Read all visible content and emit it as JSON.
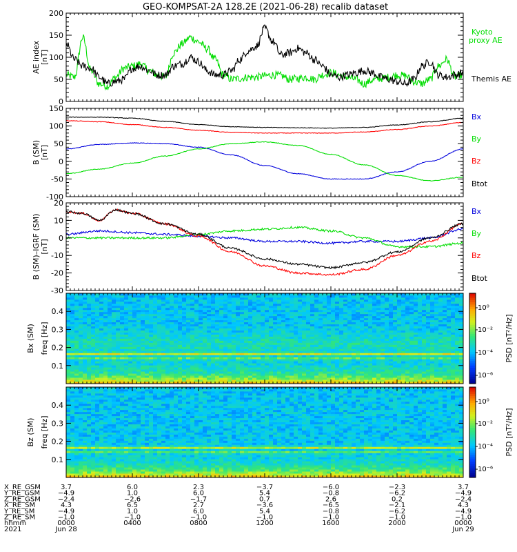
{
  "title": "GEO-KOMPSAT-2A 128.2E (2021-06-28) recalib dataset",
  "colors": {
    "black": "#000000",
    "red": "#ff0000",
    "green": "#00dd00",
    "blue": "#0000dd"
  },
  "chart_data": [
    {
      "type": "line",
      "ylabel": "AE index",
      "yunit": "[nT]",
      "ylim": [
        0,
        200
      ],
      "yticks": [
        0,
        50,
        100,
        150,
        200
      ],
      "legend_placement": "right",
      "series": [
        {
          "name": "Kyoto proxy AE",
          "color": "#00dd00",
          "legend_lines": [
            "Kyoto",
            "proxy AE"
          ],
          "x": [
            0,
            0.5,
            1,
            1.5,
            2,
            2.5,
            3,
            3.5,
            4,
            4.5,
            5,
            5.5,
            6,
            6.5,
            7,
            7.5,
            8,
            8.5,
            9,
            9.5,
            10,
            10.5,
            11,
            11.5,
            12,
            12.5,
            13,
            13.5,
            14,
            14.5,
            15,
            15.5,
            16,
            16.5,
            17,
            17.5,
            18,
            18.5,
            19,
            19.5,
            20,
            20.5,
            21,
            21.5,
            22,
            22.5,
            23,
            23.5,
            24
          ],
          "y": [
            60,
            55,
            145,
            70,
            40,
            35,
            55,
            75,
            80,
            85,
            70,
            60,
            55,
            110,
            130,
            145,
            135,
            120,
            95,
            60,
            50,
            52,
            55,
            55,
            58,
            60,
            58,
            50,
            52,
            55,
            50,
            60,
            65,
            60,
            55,
            50,
            40,
            48,
            52,
            55,
            60,
            58,
            45,
            40,
            50,
            80,
            95,
            55,
            60
          ]
        },
        {
          "name": "Themis AE",
          "color": "#000000",
          "legend_lines": [
            "Themis AE"
          ],
          "x": [
            0,
            0.5,
            1,
            1.5,
            2,
            2.5,
            3,
            3.5,
            4,
            4.5,
            5,
            5.5,
            6,
            6.5,
            7,
            7.5,
            8,
            8.5,
            9,
            9.5,
            10,
            10.5,
            11,
            11.5,
            12,
            12.5,
            13,
            13.5,
            14,
            14.5,
            15,
            15.5,
            16,
            16.5,
            17,
            17.5,
            18,
            18.5,
            19,
            19.5,
            20,
            20.5,
            21,
            21.5,
            22,
            22.5,
            23,
            23.5,
            24
          ],
          "y": [
            130,
            95,
            80,
            75,
            55,
            40,
            45,
            50,
            75,
            80,
            70,
            60,
            60,
            80,
            85,
            100,
            90,
            70,
            60,
            60,
            70,
            95,
            115,
            125,
            165,
            135,
            105,
            110,
            120,
            110,
            95,
            80,
            60,
            55,
            60,
            65,
            70,
            65,
            55,
            50,
            45,
            40,
            50,
            80,
            90,
            60,
            55,
            60,
            65
          ]
        }
      ]
    },
    {
      "type": "line",
      "ylabel": "B (SM)",
      "yunit": "[nT]",
      "ylim": [
        -100,
        150
      ],
      "yticks": [
        -100,
        -50,
        0,
        50,
        100,
        150
      ],
      "legend_placement": "right",
      "series": [
        {
          "name": "Bx",
          "color": "#0000dd",
          "x": [
            0,
            2,
            4,
            6,
            8,
            10,
            12,
            14,
            16,
            18,
            20,
            22,
            24
          ],
          "y": [
            35,
            48,
            52,
            50,
            40,
            18,
            -12,
            -35,
            -50,
            -50,
            -30,
            0,
            35
          ]
        },
        {
          "name": "By",
          "color": "#00dd00",
          "x": [
            0,
            2,
            4,
            6,
            8,
            10,
            12,
            14,
            16,
            18,
            20,
            22,
            24
          ],
          "y": [
            -35,
            -22,
            -5,
            15,
            35,
            50,
            55,
            45,
            20,
            -10,
            -40,
            -55,
            -45
          ]
        },
        {
          "name": "Bz",
          "color": "#ff0000",
          "x": [
            0,
            2,
            4,
            6,
            8,
            10,
            12,
            14,
            16,
            18,
            20,
            22,
            24
          ],
          "y": [
            115,
            112,
            104,
            96,
            88,
            82,
            80,
            80,
            80,
            83,
            90,
            100,
            110
          ]
        },
        {
          "name": "Btot",
          "color": "#000000",
          "x": [
            0,
            2,
            4,
            6,
            8,
            10,
            12,
            14,
            16,
            18,
            20,
            22,
            24
          ],
          "y": [
            125,
            125,
            122,
            113,
            104,
            98,
            96,
            95,
            94,
            96,
            103,
            112,
            122
          ]
        }
      ]
    },
    {
      "type": "line",
      "ylabel": "B (SM)–IGRF (SM)",
      "yunit": "[nT]",
      "ylim": [
        -30,
        20
      ],
      "yticks": [
        -30,
        -20,
        -10,
        0,
        10,
        20
      ],
      "legend_placement": "right",
      "series": [
        {
          "name": "Bx",
          "color": "#0000dd",
          "x": [
            0,
            2,
            4,
            6,
            8,
            10,
            12,
            14,
            16,
            18,
            20,
            22,
            24
          ],
          "y": [
            2,
            4,
            3,
            2,
            1,
            0,
            -2,
            -2,
            -3,
            -2,
            -2,
            0,
            5
          ]
        },
        {
          "name": "By",
          "color": "#00dd00",
          "x": [
            0,
            2,
            4,
            6,
            8,
            10,
            12,
            14,
            16,
            18,
            20,
            22,
            24
          ],
          "y": [
            0,
            0,
            0,
            0,
            2,
            4,
            5,
            6,
            4,
            0,
            -5,
            -5,
            -3
          ]
        },
        {
          "name": "Bz",
          "color": "#ff0000",
          "x": [
            0,
            1,
            2,
            3,
            4,
            6,
            8,
            10,
            12,
            14,
            16,
            18,
            20,
            22,
            24
          ],
          "y": [
            15,
            14,
            10,
            16,
            14,
            8,
            1,
            -8,
            -16,
            -20,
            -21,
            -18,
            -10,
            -2,
            8
          ]
        },
        {
          "name": "Btot",
          "color": "#000000",
          "x": [
            0,
            1,
            2,
            3,
            4,
            6,
            8,
            10,
            12,
            14,
            16,
            18,
            20,
            22,
            24
          ],
          "y": [
            15,
            14,
            10,
            16,
            14,
            8,
            2,
            -6,
            -12,
            -15,
            -17,
            -14,
            -8,
            0,
            8
          ]
        }
      ]
    },
    {
      "type": "heatmap",
      "ylabel": "Bx (SM)",
      "ylabel2": "freq [Hz]",
      "ylim": [
        0,
        0.5
      ],
      "yticks": [
        0.1,
        0.2,
        0.3,
        0.4
      ],
      "colorbar_label": "PSD [nT²/Hz]",
      "colorbar_ticks": [
        "10⁰",
        "10⁻²",
        "10⁻⁴",
        "10⁻⁶"
      ],
      "band_freqs": [
        0.167,
        0.14
      ]
    },
    {
      "type": "heatmap",
      "ylabel": "Bz (SM)",
      "ylabel2": "freq [Hz]",
      "ylim": [
        0,
        0.5
      ],
      "yticks": [
        0.1,
        0.2,
        0.3,
        0.4
      ],
      "colorbar_label": "PSD [nT²/Hz]",
      "colorbar_ticks": [
        "10⁰",
        "10⁻²",
        "10⁻⁴",
        "10⁻⁶"
      ],
      "band_freqs": [
        0.167,
        0.14
      ]
    }
  ],
  "ephemeris": {
    "rows": [
      {
        "label": "X_RE_GSM",
        "values": [
          "3.7",
          "6.0",
          "2.3",
          "−3.7",
          "−6.0",
          "−2.3",
          "3.7"
        ]
      },
      {
        "label": "Y_RE_GSM",
        "values": [
          "−4.9",
          "1.0",
          "6.0",
          "5.4",
          "−0.8",
          "−6.2",
          "−4.9"
        ]
      },
      {
        "label": "Z_RE_GSM",
        "values": [
          "−2.4",
          "−2.6",
          "−1.7",
          "0.7",
          "2.6",
          "0.2",
          "−2.4"
        ]
      },
      {
        "label": "X_RE_SM",
        "values": [
          "4.3",
          "6.5",
          "2.7",
          "−3.6",
          "−6.5",
          "−2.1",
          "4.3"
        ]
      },
      {
        "label": "Y_RE_SM",
        "values": [
          "−4.9",
          "1.0",
          "6.0",
          "5.4",
          "−0.8",
          "−6.2",
          "−4.9"
        ]
      },
      {
        "label": "Z_RE_SM",
        "values": [
          "−1.0",
          "−1.0",
          "−1.0",
          "−1.0",
          "−1.0",
          "−1.0",
          "−1.0"
        ]
      },
      {
        "label": "hhmm",
        "values": [
          "0000",
          "0400",
          "0800",
          "1200",
          "1600",
          "2000",
          "0000"
        ]
      },
      {
        "label": "2021",
        "values": [
          "Jun 28",
          "",
          "",
          "",
          "",
          "",
          "Jun 29"
        ]
      }
    ]
  }
}
